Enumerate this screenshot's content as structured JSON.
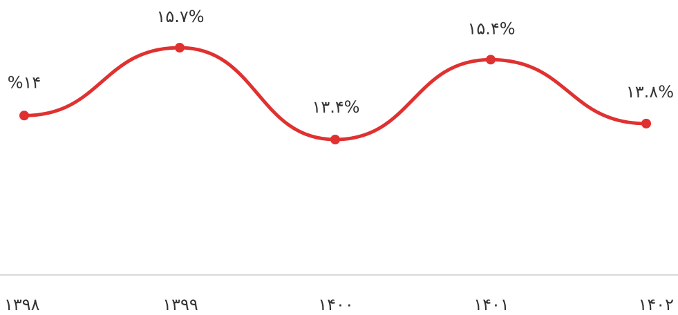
{
  "chart_data": {
    "type": "line",
    "categories": [
      "۱۳۹۸",
      "۱۳۹۹",
      "۱۴۰۰",
      "۱۴۰۱",
      "۱۴۰۲"
    ],
    "series": [
      {
        "values": [
          14.0,
          15.7,
          13.4,
          15.4,
          13.8
        ],
        "data_labels": [
          "%۱۴",
          "۱۵.۷%",
          "۱۳.۴%",
          "۱۵.۴%",
          "۱۳.۸%"
        ],
        "color": "#e03131"
      }
    ],
    "title": "",
    "xlabel": "",
    "ylabel": "",
    "ylim": [
      10,
      17
    ],
    "grid": false,
    "legend": "none",
    "smooth": true,
    "axis_color": "#d9d9d9"
  }
}
